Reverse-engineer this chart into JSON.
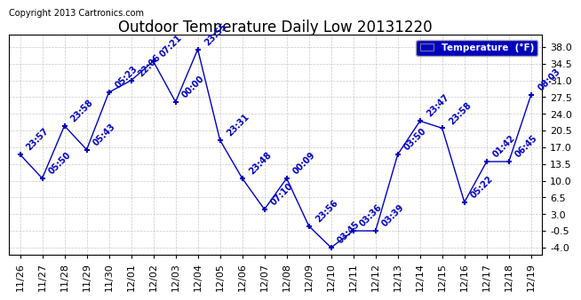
{
  "title": "Outdoor Temperature Daily Low 20131220",
  "copyright": "Copyright 2013 Cartronics.com",
  "legend_label": "Temperature  (°F)",
  "x_labels": [
    "11/26",
    "11/27",
    "11/28",
    "11/29",
    "11/30",
    "12/01",
    "12/02",
    "12/03",
    "12/04",
    "12/05",
    "12/06",
    "12/07",
    "12/08",
    "12/09",
    "12/10",
    "12/11",
    "12/12",
    "12/13",
    "12/14",
    "12/15",
    "12/16",
    "12/17",
    "12/18",
    "12/19"
  ],
  "y_values": [
    15.5,
    10.5,
    21.5,
    16.5,
    28.5,
    31.0,
    35.0,
    26.5,
    37.5,
    18.5,
    10.5,
    4.0,
    10.5,
    0.5,
    -4.0,
    -0.5,
    -0.5,
    15.5,
    22.5,
    21.0,
    5.5,
    14.0,
    14.0,
    28.0
  ],
  "point_labels": [
    "23:57",
    "05:50",
    "23:58",
    "05:43",
    "05:23",
    "22:06",
    "07:21",
    "00:00",
    "23:55",
    "23:31",
    "23:48",
    "07:10",
    "00:09",
    "23:56",
    "03:45",
    "03:36",
    "03:39",
    "03:50",
    "23:47",
    "23:58",
    "05:22",
    "01:42",
    "06:45",
    "08:03"
  ],
  "line_color": "#0000bb",
  "marker_color": "#0000bb",
  "bg_color": "#ffffff",
  "grid_color": "#bbbbbb",
  "title_color": "#000000",
  "legend_bg": "#0000bb",
  "legend_text_color": "#ffffff",
  "ylim": [
    -5.5,
    40.5
  ],
  "yticks": [
    38.0,
    34.5,
    31.0,
    27.5,
    24.0,
    20.5,
    17.0,
    13.5,
    10.0,
    6.5,
    3.0,
    -0.5,
    -4.0
  ],
  "label_fontsize": 7,
  "title_fontsize": 12,
  "tick_fontsize": 8,
  "copyright_fontsize": 7
}
